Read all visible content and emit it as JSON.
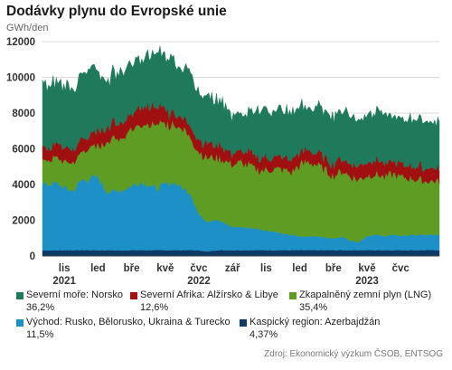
{
  "title": "Dodávky plynu do Evropské unie",
  "subtitle": "GWh/den",
  "source": "Zdroj: Ekonomický výzkum ČSOB, ENTSOG",
  "chart_data": {
    "type": "area",
    "stacked": true,
    "y_unit": "GWh/den",
    "ylim": [
      0,
      12000
    ],
    "y_ticks": [
      0,
      2000,
      4000,
      6000,
      8000,
      10000,
      12000
    ],
    "x_ticks": [
      "lis",
      "led",
      "bře",
      "kvě",
      "čvc",
      "zář",
      "lis",
      "led",
      "bře",
      "kvě",
      "čvc"
    ],
    "x_tick_month_index": [
      1,
      3,
      5,
      7,
      9,
      11,
      13,
      15,
      17,
      19,
      21
    ],
    "years": [
      {
        "label": "2021",
        "month_index": 1
      },
      {
        "label": "2022",
        "month_index": 9
      },
      {
        "label": "2023",
        "month_index": 19
      }
    ],
    "x_start_month_index": -0.3,
    "x_end_month_index": 23.3,
    "x_month_index_origin": "říj 2021",
    "x": [
      0,
      0.5,
      1,
      1.5,
      2,
      2.5,
      3,
      3.5,
      4,
      4.5,
      5,
      5.5,
      6,
      6.5,
      7,
      7.5,
      8,
      8.5,
      9,
      9.5,
      10,
      10.5,
      11,
      11.5,
      12,
      12.5,
      13,
      13.5,
      14,
      14.5,
      15,
      15.5,
      16,
      16.5,
      17,
      17.5,
      18,
      18.5,
      19,
      19.5,
      20,
      20.5,
      21,
      21.5,
      22,
      22.5,
      23
    ],
    "series": [
      {
        "name": "Kaspický region: Azerbajdžán",
        "share": "4,37%",
        "color": "#0d3a66",
        "values": [
          320,
          320,
          330,
          330,
          330,
          330,
          330,
          330,
          320,
          320,
          330,
          330,
          330,
          330,
          330,
          330,
          330,
          330,
          320,
          250,
          330,
          330,
          330,
          330,
          330,
          330,
          330,
          330,
          330,
          330,
          330,
          330,
          330,
          330,
          330,
          330,
          330,
          330,
          330,
          330,
          330,
          330,
          330,
          330,
          330,
          330,
          330
        ]
      },
      {
        "name": "Východ: Rusko, Bělorusko, Ukraina & Turecko",
        "share": "11,5%",
        "color": "#1e90c8",
        "values": [
          3700,
          3750,
          3500,
          3300,
          3900,
          4000,
          4100,
          3300,
          3300,
          3400,
          3600,
          3800,
          3700,
          3400,
          3700,
          3800,
          3500,
          3200,
          2000,
          1700,
          1750,
          1500,
          1300,
          1300,
          1250,
          1200,
          1100,
          1050,
          900,
          850,
          750,
          750,
          800,
          700,
          650,
          750,
          550,
          450,
          800,
          850,
          800,
          850,
          800,
          850,
          850,
          850,
          850
        ]
      },
      {
        "name": "Zkapalněný zemní plyn (LNG)",
        "share": "35,4%",
        "color": "#5e9c24",
        "values": [
          1300,
          1500,
          1500,
          1600,
          1600,
          1700,
          1700,
          2800,
          2900,
          2800,
          3200,
          3200,
          3400,
          3600,
          3300,
          3300,
          3300,
          3200,
          3500,
          3600,
          3500,
          3500,
          3500,
          3600,
          3500,
          3300,
          3400,
          3500,
          3600,
          3500,
          4000,
          4200,
          4000,
          3800,
          3500,
          3700,
          3600,
          3500,
          3400,
          3400,
          3300,
          3400,
          3300,
          3200,
          3100,
          3000,
          3000
        ]
      },
      {
        "name": "Severní Afrika: Alžírsko & Libye",
        "share": "12,6%",
        "color": "#a01010",
        "values": [
          700,
          750,
          800,
          700,
          750,
          700,
          750,
          800,
          900,
          850,
          900,
          1100,
          1000,
          900,
          800,
          700,
          600,
          600,
          700,
          800,
          750,
          700,
          650,
          650,
          700,
          650,
          700,
          650,
          650,
          700,
          650,
          700,
          650,
          700,
          700,
          800,
          750,
          700,
          750,
          800,
          750,
          750,
          700,
          700,
          750,
          700,
          700
        ]
      },
      {
        "name": "Severní moře: Norsko",
        "share": "36,2%",
        "color": "#1e7a5a",
        "values": [
          3500,
          3400,
          3500,
          3500,
          3500,
          3700,
          3300,
          2700,
          2800,
          2900,
          2900,
          2800,
          2900,
          3100,
          3000,
          3100,
          2800,
          2900,
          2700,
          2600,
          2600,
          2600,
          2100,
          2100,
          2200,
          2600,
          2700,
          2700,
          2600,
          2600,
          2600,
          2400,
          2600,
          2700,
          2700,
          2700,
          2700,
          2600,
          2700,
          2800,
          2700,
          2600,
          2600,
          2500,
          2700,
          2700,
          2600
        ]
      }
    ],
    "legend_position": "bottom",
    "grid": true
  }
}
